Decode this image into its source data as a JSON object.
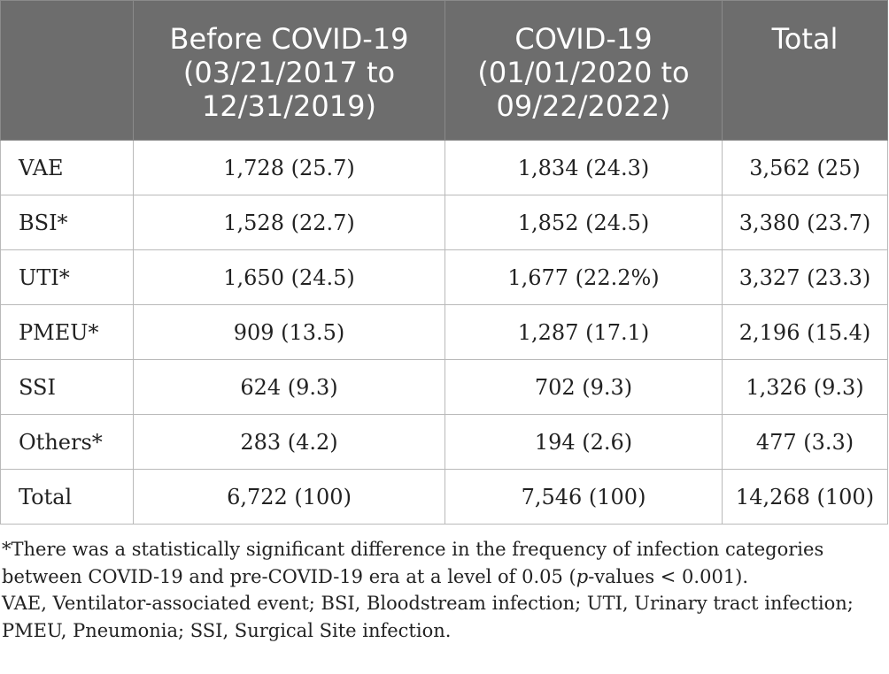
{
  "table": {
    "headers": [
      "",
      "Before COVID-19\n(03/21/2017 to\n12/31/2019)",
      "COVID-19\n(01/01/2020 to\n09/22/2022)",
      "Total"
    ],
    "rows": [
      [
        "VAE",
        "1,728 (25.7)",
        "1,834 (24.3)",
        "3,562 (25)"
      ],
      [
        "BSI*",
        "1,528 (22.7)",
        "1,852 (24.5)",
        "3,380 (23.7)"
      ],
      [
        "UTI*",
        "1,650 (24.5)",
        "1,677 (22.2%)",
        "3,327 (23.3)"
      ],
      [
        "PMEU*",
        "909 (13.5)",
        "1,287 (17.1)",
        "2,196 (15.4)"
      ],
      [
        "SSI",
        "624 (9.3)",
        "702 (9.3)",
        "1,326 (9.3)"
      ],
      [
        "Others*",
        "283 (4.2)",
        "194 (2.6)",
        "477 (3.3)"
      ],
      [
        "Total",
        "6,722 (100)",
        "7,546 (100)",
        "14,268 (100)"
      ]
    ]
  },
  "footnotes": {
    "significance_pre": "*There was a statistically significant difference in the frequency of infection categories",
    "significance_mid": "between COVID-19 and pre-COVID-19 era at a level of 0.05 (",
    "significance_italic": "p",
    "significance_post": "-values < 0.001).",
    "abbrev_line1": "VAE, Ventilator-associated event; BSI, Bloodstream infection; UTI, Urinary tract infection;",
    "abbrev_line2": "PMEU, Pneumonia; SSI, Surgical Site infection."
  },
  "colors": {
    "header_bg": "#6d6d6d",
    "header_text": "#ffffff",
    "border": "#b9b9b9",
    "body_text": "#222222"
  }
}
